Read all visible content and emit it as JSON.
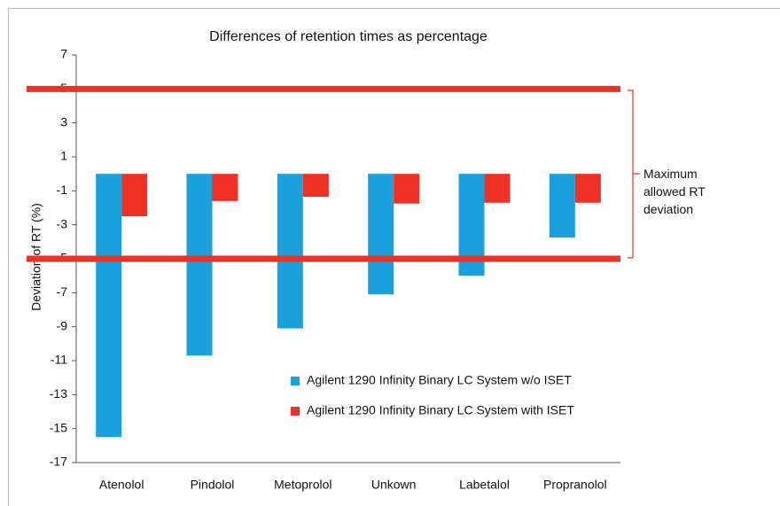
{
  "chart_data": {
    "type": "bar",
    "title": "Differences of retention times as percentage",
    "ylabel": "Deviation of RT (%)",
    "categories": [
      "Atenolol",
      "Pindolol",
      "Metoprolol",
      "Unkown",
      "Labetalol",
      "Propranolol"
    ],
    "series": [
      {
        "name": "Agilent 1290 Infinity Binary LC System w/o ISET",
        "color": "#1aa0dc",
        "values": [
          -15.5,
          -10.7,
          -9.1,
          -7.1,
          -6.0,
          -3.75
        ]
      },
      {
        "name": "Agilent 1290 Infinity Binary LC System with ISET",
        "color": "#ee3124",
        "values": [
          -2.5,
          -1.6,
          -1.35,
          -1.75,
          -1.7,
          -1.7
        ]
      }
    ],
    "ylim": [
      -17,
      7
    ],
    "yticks": [
      7,
      5,
      3,
      1,
      -1,
      -3,
      -5,
      -7,
      -9,
      -11,
      -13,
      -15,
      -17
    ],
    "reference_lines": [
      {
        "value": 5,
        "color": "#ee3124"
      },
      {
        "value": -5,
        "color": "#ee3124"
      }
    ],
    "annotation": "Maximum allowed RT deviation",
    "legend": "lower right"
  }
}
